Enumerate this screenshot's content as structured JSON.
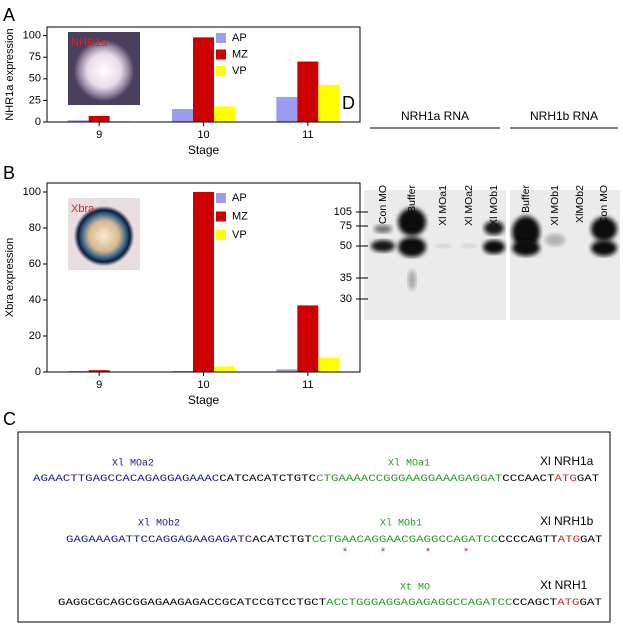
{
  "chart_data": [
    {
      "type": "bar",
      "panel": "A",
      "inset_label": "NHR1a",
      "y_label": "NHR1a expression",
      "x_label": "Stage",
      "categories": [
        "9",
        "10",
        "11"
      ],
      "series": [
        {
          "name": "AP",
          "color": "#9d9df0",
          "values": [
            2,
            15,
            29
          ]
        },
        {
          "name": "MZ",
          "color": "#cc0000",
          "values": [
            7,
            98,
            70
          ]
        },
        {
          "name": "VP",
          "color": "#ffff00",
          "values": [
            1,
            18,
            43
          ]
        }
      ],
      "ylim": [
        0,
        110
      ],
      "yticks": [
        0,
        25,
        50,
        75,
        100
      ],
      "legend": "upper right"
    },
    {
      "type": "bar",
      "panel": "B",
      "inset_label": "Xbra",
      "y_label": "Xbra expression",
      "x_label": "Stage",
      "categories": [
        "9",
        "10",
        "11"
      ],
      "series": [
        {
          "name": "AP",
          "color": "#9d9df0",
          "values": [
            0.5,
            0.5,
            1.5
          ]
        },
        {
          "name": "MZ",
          "color": "#cc0000",
          "values": [
            1,
            100,
            37
          ]
        },
        {
          "name": "VP",
          "color": "#ffff00",
          "values": [
            0.3,
            3,
            8
          ]
        }
      ],
      "ylim": [
        0,
        105
      ],
      "yticks": [
        0,
        20,
        40,
        60,
        80,
        100
      ],
      "legend": "upper right"
    }
  ],
  "blot": {
    "panel": "D",
    "groups": [
      {
        "label": "NRH1a RNA",
        "lanes": [
          "Con MO",
          "Buffer",
          "Xl MOa1",
          "Xl MOa2",
          "Xl MOb1"
        ]
      },
      {
        "label": "NRH1b RNA",
        "lanes": [
          "Buffer",
          "Xl MOb1",
          "XlMOb2",
          "Con MO"
        ]
      }
    ],
    "markers": [
      105,
      75,
      50,
      35,
      30
    ]
  },
  "sequences": {
    "panel": "C",
    "rows": [
      {
        "name": "Xl NRH1a",
        "primers": [
          {
            "label": "Xl MOa2",
            "color": "#1c1c8c"
          },
          {
            "label": "Xl MOa1",
            "color": "#2a9a2a"
          }
        ],
        "segments": [
          {
            "text": "AGAACTTGAGCCACAGAGGAGAAAC",
            "color": "#1c1c8c"
          },
          {
            "text": "CATCACATCTGTC",
            "color": "#000000"
          },
          {
            "text": "CTGAAAACCGGGAAGGAAAGAGGAT",
            "color": "#2a9a2a"
          },
          {
            "text": "CCCAACT",
            "color": "#000000"
          },
          {
            "text": "ATG",
            "color": "#c03030"
          },
          {
            "text": "GAT",
            "color": "#000000"
          }
        ]
      },
      {
        "name": "Xl NRH1b",
        "primers": [
          {
            "label": "Xl MOb2",
            "color": "#1c1c8c"
          },
          {
            "label": "Xl MOb1",
            "color": "#2a9a2a"
          }
        ],
        "segments": [
          {
            "text": "GAGAAAGATTCCAGGAGAAGAGATC",
            "color": "#1c1c8c"
          },
          {
            "text": "ACATCTGT",
            "color": "#000000"
          },
          {
            "text": "CCTGAACAGGAACGAGGCCAGATCC",
            "color": "#2a9a2a"
          },
          {
            "text": "CCCCAGTT",
            "color": "#000000"
          },
          {
            "text": "ATG",
            "color": "#c03030"
          },
          {
            "text": "GAT",
            "color": "#000000"
          }
        ],
        "asterisks": [
          "*",
          "*",
          "*",
          "*"
        ]
      },
      {
        "name": "Xt NRH1",
        "primers": [
          {
            "label": "Xt MO",
            "color": "#2a9a2a"
          }
        ],
        "segments": [
          {
            "text": "GAGGCGCAGCGGAGAAGAGACCGCATCCGTCCTGCT",
            "color": "#000000"
          },
          {
            "text": "ACCTGGGAGGAGAGAGGCCAGATCC",
            "color": "#2a9a2a"
          },
          {
            "text": "CCAGCT",
            "color": "#000000"
          },
          {
            "text": "ATG",
            "color": "#c03030"
          },
          {
            "text": "GAT",
            "color": "#000000"
          }
        ]
      }
    ]
  }
}
